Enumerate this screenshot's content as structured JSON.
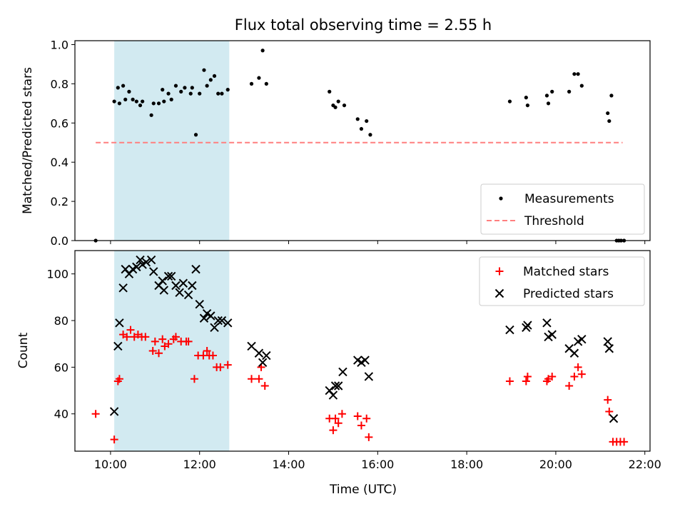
{
  "title": "Flux total observing time = 2.55 h",
  "colors": {
    "measurement": "#000000",
    "threshold": "#ff7f7f",
    "matched": "#ff0000",
    "predicted": "#000000",
    "highlight": "#add8e6"
  },
  "chart_data": [
    {
      "type": "scatter",
      "panel": "top",
      "title": "Flux total observing time = 2.55 h",
      "xlabel": "",
      "ylabel": "Matched/Predicted stars",
      "xlim": [
        "09:12",
        "22:07"
      ],
      "ylim": [
        0.0,
        1.02
      ],
      "xticks": [
        "10:00",
        "12:00",
        "14:00",
        "16:00",
        "18:00",
        "20:00",
        "22:00"
      ],
      "yticks": [
        "0.0",
        "0.2",
        "0.4",
        "0.6",
        "0.8",
        "1.0"
      ],
      "highlight_span": [
        "10:05",
        "12:40"
      ],
      "legend": {
        "position": "lower-right",
        "entries": [
          "Measurements",
          "Threshold"
        ]
      },
      "series": [
        {
          "name": "Measurements",
          "style": "dot",
          "points": [
            [
              "09:40",
              0.0
            ],
            [
              "10:05",
              0.71
            ],
            [
              "10:10",
              0.78
            ],
            [
              "10:12",
              0.7
            ],
            [
              "10:17",
              0.79
            ],
            [
              "10:20",
              0.72
            ],
            [
              "10:25",
              0.76
            ],
            [
              "10:30",
              0.72
            ],
            [
              "10:35",
              0.71
            ],
            [
              "10:40",
              0.69
            ],
            [
              "10:43",
              0.71
            ],
            [
              "10:55",
              0.64
            ],
            [
              "10:58",
              0.7
            ],
            [
              "11:05",
              0.7
            ],
            [
              "11:10",
              0.77
            ],
            [
              "11:12",
              0.71
            ],
            [
              "11:18",
              0.75
            ],
            [
              "11:22",
              0.72
            ],
            [
              "11:28",
              0.79
            ],
            [
              "11:35",
              0.76
            ],
            [
              "11:40",
              0.78
            ],
            [
              "11:48",
              0.75
            ],
            [
              "11:50",
              0.78
            ],
            [
              "11:55",
              0.54
            ],
            [
              "12:00",
              0.75
            ],
            [
              "12:06",
              0.87
            ],
            [
              "12:10",
              0.79
            ],
            [
              "12:15",
              0.82
            ],
            [
              "12:20",
              0.84
            ],
            [
              "12:25",
              0.75
            ],
            [
              "12:30",
              0.75
            ],
            [
              "12:38",
              0.77
            ],
            [
              "13:10",
              0.8
            ],
            [
              "13:20",
              0.83
            ],
            [
              "13:25",
              0.97
            ],
            [
              "13:30",
              0.8
            ],
            [
              "14:55",
              0.76
            ],
            [
              "15:00",
              0.69
            ],
            [
              "15:03",
              0.68
            ],
            [
              "15:07",
              0.71
            ],
            [
              "15:15",
              0.69
            ],
            [
              "15:33",
              0.62
            ],
            [
              "15:38",
              0.57
            ],
            [
              "15:45",
              0.61
            ],
            [
              "15:50",
              0.54
            ],
            [
              "18:58",
              0.71
            ],
            [
              "19:20",
              0.73
            ],
            [
              "19:22",
              0.69
            ],
            [
              "19:48",
              0.74
            ],
            [
              "19:50",
              0.7
            ],
            [
              "19:55",
              0.76
            ],
            [
              "20:18",
              0.76
            ],
            [
              "20:25",
              0.85
            ],
            [
              "20:30",
              0.85
            ],
            [
              "20:35",
              0.79
            ],
            [
              "21:10",
              0.65
            ],
            [
              "21:12",
              0.61
            ],
            [
              "21:15",
              0.74
            ],
            [
              "21:22",
              0.0
            ],
            [
              "21:25",
              0.0
            ],
            [
              "21:28",
              0.0
            ],
            [
              "21:32",
              0.0
            ]
          ]
        },
        {
          "name": "Threshold",
          "style": "dashed-line",
          "points": [
            [
              "09:40",
              0.5
            ],
            [
              "21:30",
              0.5
            ]
          ]
        }
      ]
    },
    {
      "type": "scatter",
      "panel": "bottom",
      "xlabel": "Time (UTC)",
      "ylabel": "Count",
      "xlim": [
        "09:12",
        "22:07"
      ],
      "ylim": [
        24,
        110
      ],
      "xticks": [
        "10:00",
        "12:00",
        "14:00",
        "16:00",
        "18:00",
        "20:00",
        "22:00"
      ],
      "yticks": [
        "40",
        "60",
        "80",
        "100"
      ],
      "highlight_span": [
        "10:05",
        "12:40"
      ],
      "legend": {
        "position": "upper-right",
        "entries": [
          "Matched stars",
          "Predicted stars"
        ]
      },
      "series": [
        {
          "name": "Matched stars",
          "style": "plus",
          "points": [
            [
              "09:40",
              40
            ],
            [
              "10:05",
              29
            ],
            [
              "10:10",
              54
            ],
            [
              "10:12",
              55
            ],
            [
              "10:17",
              74
            ],
            [
              "10:22",
              73
            ],
            [
              "10:27",
              76
            ],
            [
              "10:32",
              73
            ],
            [
              "10:37",
              74
            ],
            [
              "10:42",
              73
            ],
            [
              "10:47",
              73
            ],
            [
              "10:57",
              67
            ],
            [
              "11:00",
              71
            ],
            [
              "11:05",
              66
            ],
            [
              "11:10",
              72
            ],
            [
              "11:13",
              69
            ],
            [
              "11:18",
              70
            ],
            [
              "11:25",
              72
            ],
            [
              "11:28",
              73
            ],
            [
              "11:35",
              71
            ],
            [
              "11:42",
              71
            ],
            [
              "11:45",
              71
            ],
            [
              "11:53",
              55
            ],
            [
              "11:58",
              65
            ],
            [
              "12:05",
              65
            ],
            [
              "12:10",
              67
            ],
            [
              "12:13",
              65
            ],
            [
              "12:18",
              65
            ],
            [
              "12:23",
              60
            ],
            [
              "12:28",
              60
            ],
            [
              "12:38",
              61
            ],
            [
              "13:10",
              55
            ],
            [
              "13:20",
              55
            ],
            [
              "13:23",
              60
            ],
            [
              "13:28",
              52
            ],
            [
              "14:55",
              38
            ],
            [
              "15:00",
              33
            ],
            [
              "15:03",
              38
            ],
            [
              "15:07",
              36
            ],
            [
              "15:12",
              40
            ],
            [
              "15:33",
              39
            ],
            [
              "15:38",
              35
            ],
            [
              "15:45",
              38
            ],
            [
              "15:48",
              30
            ],
            [
              "18:58",
              54
            ],
            [
              "19:20",
              54
            ],
            [
              "19:22",
              56
            ],
            [
              "19:48",
              54
            ],
            [
              "19:50",
              55
            ],
            [
              "19:55",
              56
            ],
            [
              "20:18",
              52
            ],
            [
              "20:25",
              56
            ],
            [
              "20:30",
              60
            ],
            [
              "20:35",
              57
            ],
            [
              "21:10",
              46
            ],
            [
              "21:12",
              41
            ],
            [
              "21:17",
              28
            ],
            [
              "21:22",
              28
            ],
            [
              "21:27",
              28
            ],
            [
              "21:32",
              28
            ]
          ]
        },
        {
          "name": "Predicted stars",
          "style": "x",
          "points": [
            [
              "10:05",
              41
            ],
            [
              "10:10",
              69
            ],
            [
              "10:12",
              79
            ],
            [
              "10:17",
              94
            ],
            [
              "10:20",
              102
            ],
            [
              "10:25",
              100
            ],
            [
              "10:30",
              102
            ],
            [
              "10:35",
              103
            ],
            [
              "10:40",
              106
            ],
            [
              "10:43",
              104
            ],
            [
              "10:48",
              105
            ],
            [
              "10:55",
              106
            ],
            [
              "10:58",
              101
            ],
            [
              "11:05",
              95
            ],
            [
              "11:10",
              97
            ],
            [
              "11:12",
              93
            ],
            [
              "11:18",
              99
            ],
            [
              "11:22",
              99
            ],
            [
              "11:28",
              95
            ],
            [
              "11:33",
              92
            ],
            [
              "11:38",
              96
            ],
            [
              "11:45",
              91
            ],
            [
              "11:50",
              95
            ],
            [
              "11:55",
              102
            ],
            [
              "12:00",
              87
            ],
            [
              "12:06",
              81
            ],
            [
              "12:10",
              83
            ],
            [
              "12:15",
              82
            ],
            [
              "12:20",
              77
            ],
            [
              "12:25",
              80
            ],
            [
              "12:30",
              80
            ],
            [
              "12:38",
              79
            ],
            [
              "13:10",
              69
            ],
            [
              "13:20",
              66
            ],
            [
              "13:25",
              62
            ],
            [
              "13:30",
              65
            ],
            [
              "14:55",
              50
            ],
            [
              "15:00",
              48
            ],
            [
              "15:03",
              52
            ],
            [
              "15:07",
              52
            ],
            [
              "15:13",
              58
            ],
            [
              "15:33",
              63
            ],
            [
              "15:38",
              62
            ],
            [
              "15:43",
              63
            ],
            [
              "15:48",
              56
            ],
            [
              "18:58",
              76
            ],
            [
              "19:20",
              77
            ],
            [
              "19:22",
              78
            ],
            [
              "19:48",
              79
            ],
            [
              "19:50",
              73
            ],
            [
              "19:55",
              74
            ],
            [
              "20:18",
              68
            ],
            [
              "20:25",
              66
            ],
            [
              "20:30",
              71
            ],
            [
              "20:35",
              72
            ],
            [
              "21:10",
              71
            ],
            [
              "21:12",
              68
            ],
            [
              "21:18",
              38
            ]
          ]
        }
      ]
    }
  ]
}
